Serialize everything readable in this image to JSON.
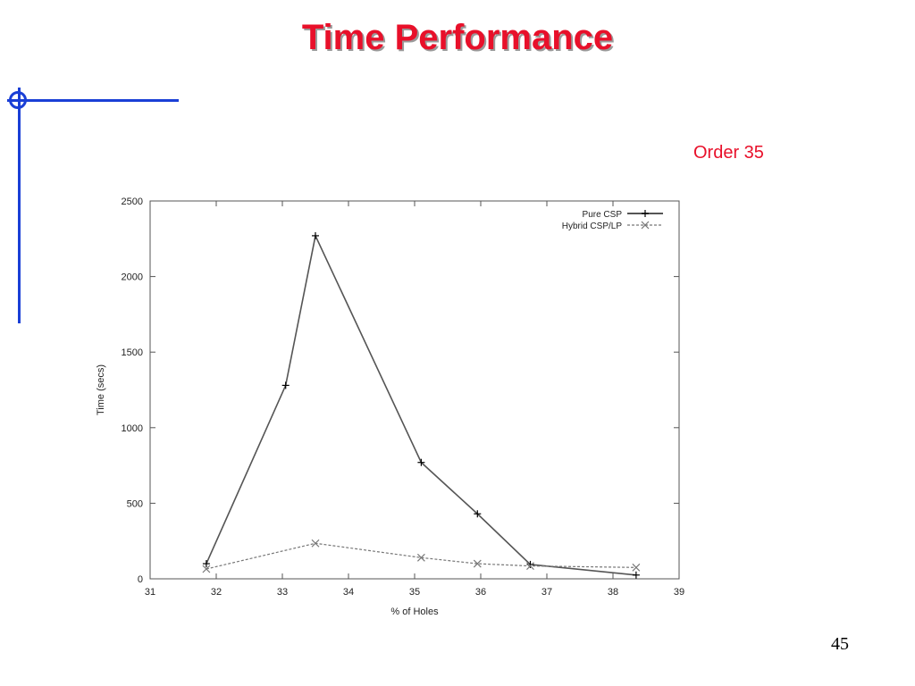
{
  "slide": {
    "title": "Time Performance",
    "subtitle": "Order 35",
    "page_number": "45"
  },
  "colors": {
    "title": "#e8102a",
    "subtitle": "#e8102a",
    "accent_lines": "#1a3fd6",
    "pure_csp": "#555555",
    "hybrid": "#777777"
  },
  "chart_data": {
    "type": "line",
    "title": "",
    "xlabel": "% of Holes",
    "ylabel": "Time (secs)",
    "xlim": [
      31,
      39
    ],
    "ylim": [
      0,
      2500
    ],
    "x_ticks": [
      "31",
      "32",
      "33",
      "34",
      "35",
      "36",
      "37",
      "38",
      "39"
    ],
    "y_ticks": [
      "0",
      "500",
      "1000",
      "1500",
      "2000",
      "2500"
    ],
    "grid": false,
    "legend_position": "top-right",
    "series": [
      {
        "name": "Pure CSP",
        "marker": "+",
        "x": [
          31.85,
          33.05,
          33.5,
          35.1,
          35.95,
          36.75,
          38.35
        ],
        "y": [
          100,
          1280,
          2270,
          770,
          430,
          95,
          25
        ]
      },
      {
        "name": "Hybrid CSP/LP",
        "marker": "x",
        "x": [
          31.85,
          33.5,
          35.1,
          35.95,
          36.75,
          38.35
        ],
        "y": [
          65,
          235,
          140,
          100,
          85,
          75
        ]
      }
    ]
  }
}
